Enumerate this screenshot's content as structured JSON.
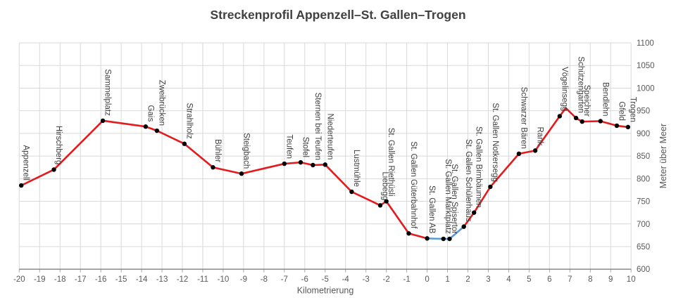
{
  "title": "Streckenprofil Appenzell–St. Gallen–Trogen",
  "chart_data": {
    "type": "line",
    "title": "Streckenprofil Appenzell–St. Gallen–Trogen",
    "xlabel": "Kilometrierung",
    "ylabel": "Meter über Meer",
    "xlim": [
      -20,
      10
    ],
    "ylim": [
      600,
      1100
    ],
    "x_tick_step": 1,
    "y_tick_step": 50,
    "grid": true,
    "y_axis_side": "right",
    "legend": "none",
    "colors": {
      "line_main": "#e41a1c",
      "line_city_section": "#5b9bd5",
      "marker": "#000000",
      "grid": "#d9d9d9",
      "axis_line": "#808080",
      "tick_stub": "#a6a6a6",
      "tick_text": "#595959",
      "station_text": "#3f3f3f",
      "title_text": "#404040"
    },
    "points": [
      {
        "station": "Appenzell",
        "km": -19.9,
        "elevation": 785
      },
      {
        "station": "Hirschberg",
        "km": -18.3,
        "elevation": 820
      },
      {
        "station": "Sammelplatz",
        "km": -15.9,
        "elevation": 928
      },
      {
        "station": "Gais",
        "km": -13.8,
        "elevation": 915
      },
      {
        "station": "Zweibrücken",
        "km": -13.25,
        "elevation": 906
      },
      {
        "station": "Strahlholz",
        "km": -11.9,
        "elevation": 877
      },
      {
        "station": "Bühler",
        "km": -10.5,
        "elevation": 825
      },
      {
        "station": "Steigbach",
        "km": -9.1,
        "elevation": 811
      },
      {
        "station": "Teufen",
        "km": -7.0,
        "elevation": 833
      },
      {
        "station": "Stofel",
        "km": -6.2,
        "elevation": 836
      },
      {
        "station": "Sternen bei Teufen",
        "km": -5.6,
        "elevation": 830
      },
      {
        "station": "Niederteufen",
        "km": -5.0,
        "elevation": 831
      },
      {
        "station": "Lustmühle",
        "km": -3.7,
        "elevation": 771
      },
      {
        "station": "Liebegg",
        "km": -2.3,
        "elevation": 741
      },
      {
        "station": "St. Gallen Riethüsli",
        "km": -2.0,
        "elevation": 750
      },
      {
        "station": "St. Gallen Güterbahnhof",
        "km": -0.9,
        "elevation": 679
      },
      {
        "station": "St. Gallen AB",
        "km": 0.0,
        "elevation": 668,
        "seg": "blue"
      },
      {
        "station": "St. Gallen Marktplatz",
        "km": 0.8,
        "elevation": 667,
        "seg": "blue"
      },
      {
        "station": "St. Gallen Spisertor",
        "km": 1.1,
        "elevation": 667,
        "seg": "blue"
      },
      {
        "station": "St. Gallen Schülerhaus",
        "km": 1.8,
        "elevation": 694
      },
      {
        "station": "St. Gallen Birnbäumen",
        "km": 2.3,
        "elevation": 725
      },
      {
        "station": "St. Gallen Notkersegg",
        "km": 3.1,
        "elevation": 782
      },
      {
        "station": "Schwarzer Bären",
        "km": 4.5,
        "elevation": 855
      },
      {
        "station": "Rank",
        "km": 5.3,
        "elevation": 862
      },
      {
        "station": "Vögelinsegg",
        "km": 6.5,
        "elevation": 938
      },
      {
        "station": "",
        "km": 6.8,
        "elevation": 956,
        "marker": false
      },
      {
        "station": "Schützengarten",
        "km": 7.3,
        "elevation": 934
      },
      {
        "station": "Speicher",
        "km": 7.6,
        "elevation": 926
      },
      {
        "station": "Bendlehn",
        "km": 8.5,
        "elevation": 927
      },
      {
        "station": "Gfeld",
        "km": 9.3,
        "elevation": 917
      },
      {
        "station": "Trogen",
        "km": 9.85,
        "elevation": 914
      }
    ],
    "blue_segment_stations": [
      "St. Gallen AB",
      "St. Gallen Marktplatz",
      "St. Gallen Spisertor",
      "St. Gallen Schülerhaus"
    ]
  }
}
